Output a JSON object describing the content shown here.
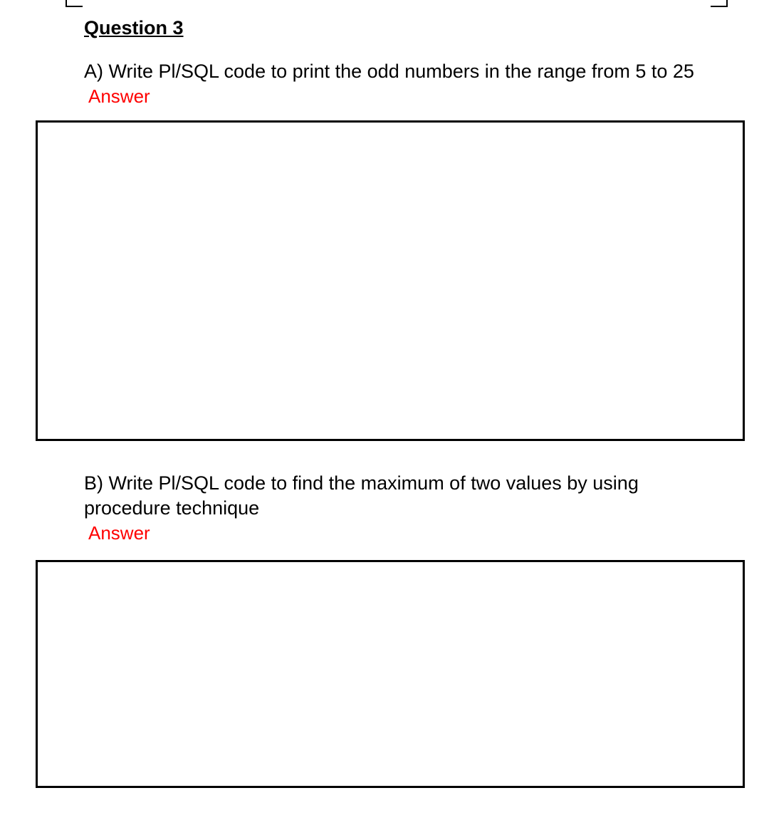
{
  "question": {
    "title": "Question 3",
    "partA": {
      "text": "A) Write Pl/SQL code to print the odd  numbers in the range from  5 to 25",
      "answerLabel": "Answer"
    },
    "partB": {
      "text": "B) Write Pl/SQL code to find  the maximum of two values by using procedure technique",
      "answerLabel": "Answer"
    }
  },
  "styles": {
    "textColor": "#000000",
    "answerLabelColor": "#ff0000",
    "backgroundColor": "#ffffff",
    "borderColor": "#000000",
    "borderWidth": 3,
    "titleFontSize": 27,
    "bodyFontSize": 27,
    "boxAHeight": 450,
    "boxBHeight": 320
  }
}
